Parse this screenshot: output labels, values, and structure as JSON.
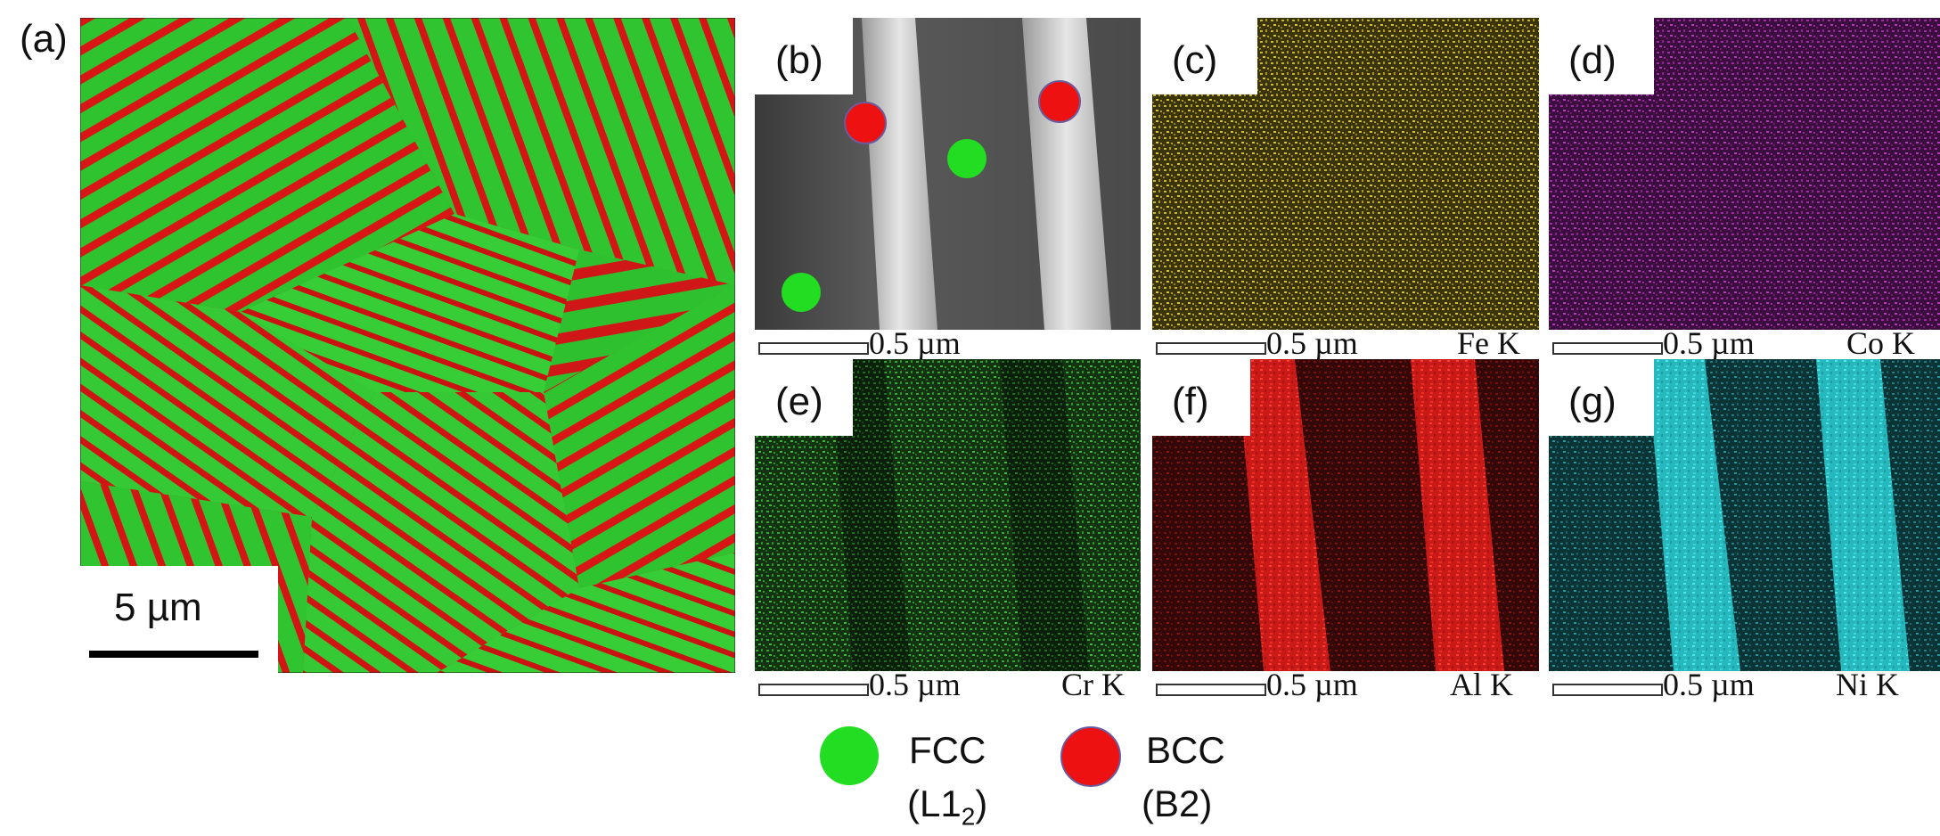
{
  "panels": {
    "a": {
      "label": "(a)",
      "scale": "5 µm"
    },
    "b": {
      "label": "(b)",
      "scale": "0.5 µm"
    },
    "c": {
      "label": "(c)",
      "scale": "0.5 µm",
      "element": "Fe K"
    },
    "d": {
      "label": "(d)",
      "scale": "0.5 µm",
      "element": "Co K"
    },
    "e": {
      "label": "(e)",
      "scale": "0.5 µm",
      "element": "Cr K"
    },
    "f": {
      "label": "(f)",
      "scale": "0.5 µm",
      "element": "Al K"
    },
    "g": {
      "label": "(g)",
      "scale": "0.5 µm",
      "element": "Ni K"
    }
  },
  "legend": {
    "fcc": {
      "name": "FCC",
      "sub_prefix": "(L1",
      "sub_index": "2",
      "sub_suffix": ")",
      "color": "#22dd22"
    },
    "bcc": {
      "name": "BCC",
      "sub": "(B2)",
      "color": "#ee1111"
    }
  },
  "colors": {
    "fe": "#c8b62a",
    "co": "#a22aa8",
    "cr": "#33a833",
    "al": "#e8231f",
    "ni": "#2bc9cf"
  }
}
